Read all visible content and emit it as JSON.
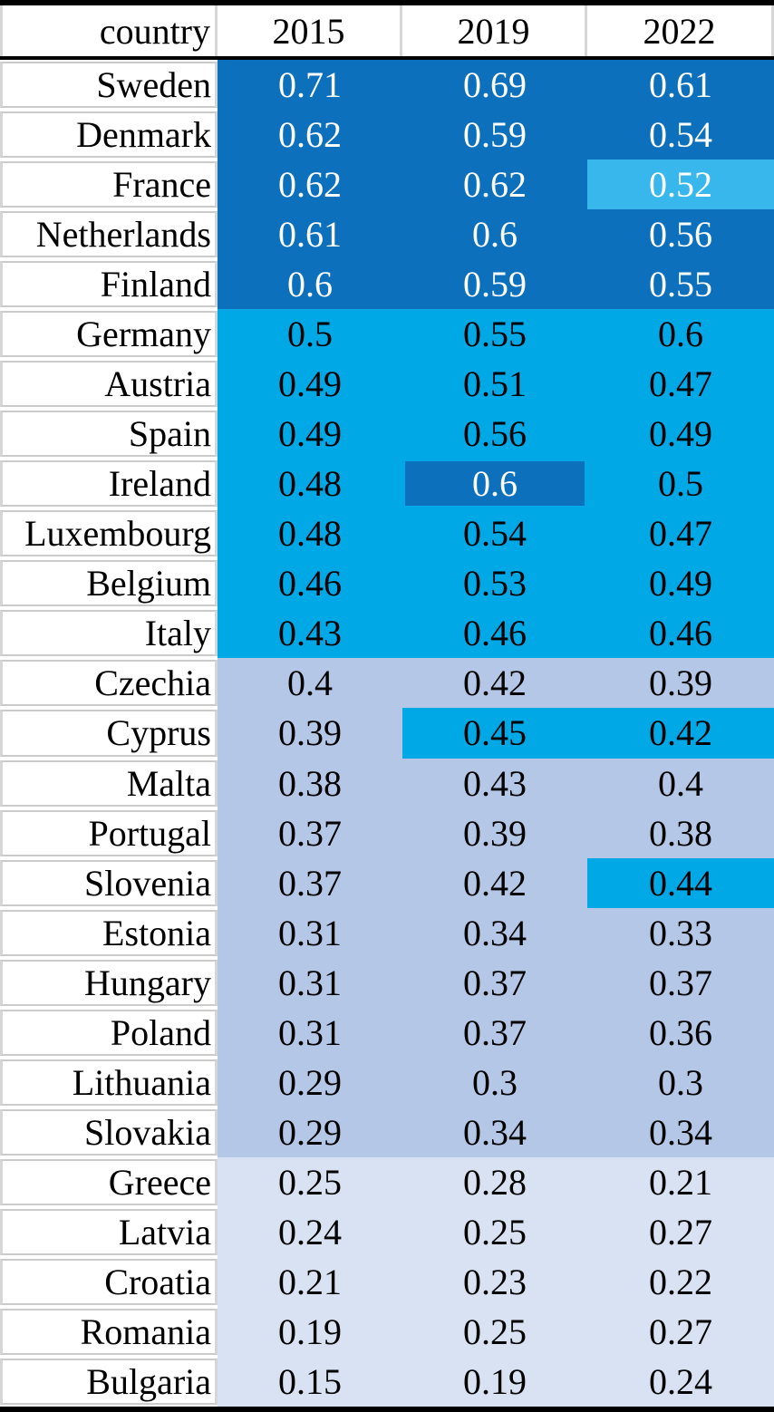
{
  "table": {
    "header": {
      "country_label": "country",
      "years": [
        "2015",
        "2019",
        "2022"
      ]
    },
    "colors": {
      "dark_blue": "#0C70BC",
      "cyan": "#00A8E6",
      "light_cyan": "#38B7EC",
      "lavender": "#B4C7E7",
      "light_lavender": "#D9E2F3",
      "separator_gray": "#CBCBCB",
      "white": "#FFFFFF",
      "black": "#000000"
    },
    "rows": [
      {
        "country": "Sweden",
        "values": [
          "0.71",
          "0.69",
          "0.61"
        ],
        "bg": [
          "dark_blue",
          "dark_blue",
          "dark_blue"
        ],
        "fg": [
          "white",
          "white",
          "white"
        ],
        "inset": [
          false,
          false,
          false
        ]
      },
      {
        "country": "Denmark",
        "values": [
          "0.62",
          "0.59",
          "0.54"
        ],
        "bg": [
          "dark_blue",
          "dark_blue",
          "dark_blue"
        ],
        "fg": [
          "white",
          "white",
          "white"
        ],
        "inset": [
          false,
          false,
          false
        ]
      },
      {
        "country": "France",
        "values": [
          "0.62",
          "0.62",
          "0.52"
        ],
        "bg": [
          "dark_blue",
          "dark_blue",
          "light_cyan"
        ],
        "fg": [
          "white",
          "white",
          "white"
        ],
        "inset": [
          false,
          false,
          false
        ]
      },
      {
        "country": "Netherlands",
        "values": [
          "0.61",
          "0.6",
          "0.56"
        ],
        "bg": [
          "dark_blue",
          "dark_blue",
          "dark_blue"
        ],
        "fg": [
          "white",
          "white",
          "white"
        ],
        "inset": [
          false,
          false,
          false
        ]
      },
      {
        "country": "Finland",
        "values": [
          "0.6",
          "0.59",
          "0.55"
        ],
        "bg": [
          "dark_blue",
          "dark_blue",
          "dark_blue"
        ],
        "fg": [
          "white",
          "white",
          "white"
        ],
        "inset": [
          false,
          false,
          false
        ]
      },
      {
        "country": "Germany",
        "values": [
          "0.5",
          "0.55",
          "0.6"
        ],
        "bg": [
          "cyan",
          "cyan",
          "cyan"
        ],
        "fg": [
          "black",
          "black",
          "black"
        ],
        "inset": [
          false,
          false,
          false
        ]
      },
      {
        "country": "Austria",
        "values": [
          "0.49",
          "0.51",
          "0.47"
        ],
        "bg": [
          "cyan",
          "cyan",
          "cyan"
        ],
        "fg": [
          "black",
          "black",
          "black"
        ],
        "inset": [
          false,
          false,
          false
        ]
      },
      {
        "country": "Spain",
        "values": [
          "0.49",
          "0.56",
          "0.49"
        ],
        "bg": [
          "cyan",
          "cyan",
          "cyan"
        ],
        "fg": [
          "black",
          "black",
          "black"
        ],
        "inset": [
          false,
          false,
          false
        ]
      },
      {
        "country": "Ireland",
        "values": [
          "0.48",
          "0.6",
          "0.5"
        ],
        "bg": [
          "cyan",
          "dark_blue",
          "cyan"
        ],
        "fg": [
          "black",
          "white",
          "black"
        ],
        "inset": [
          false,
          true,
          false
        ]
      },
      {
        "country": "Luxembourg",
        "values": [
          "0.48",
          "0.54",
          "0.47"
        ],
        "bg": [
          "cyan",
          "cyan",
          "cyan"
        ],
        "fg": [
          "black",
          "black",
          "black"
        ],
        "inset": [
          false,
          false,
          false
        ]
      },
      {
        "country": "Belgium",
        "values": [
          "0.46",
          "0.53",
          "0.49"
        ],
        "bg": [
          "cyan",
          "cyan",
          "cyan"
        ],
        "fg": [
          "black",
          "black",
          "black"
        ],
        "inset": [
          false,
          false,
          false
        ]
      },
      {
        "country": "Italy",
        "values": [
          "0.43",
          "0.46",
          "0.46"
        ],
        "bg": [
          "cyan",
          "cyan",
          "cyan"
        ],
        "fg": [
          "black",
          "black",
          "black"
        ],
        "inset": [
          false,
          false,
          false
        ]
      },
      {
        "country": "Czechia",
        "values": [
          "0.4",
          "0.42",
          "0.39"
        ],
        "bg": [
          "lavender",
          "lavender",
          "lavender"
        ],
        "fg": [
          "black",
          "black",
          "black"
        ],
        "inset": [
          false,
          false,
          false
        ]
      },
      {
        "country": "Cyprus",
        "values": [
          "0.39",
          "0.45",
          "0.42"
        ],
        "bg": [
          "lavender",
          "cyan",
          "cyan"
        ],
        "fg": [
          "black",
          "black",
          "black"
        ],
        "inset": [
          false,
          false,
          false
        ]
      },
      {
        "country": "Malta",
        "values": [
          "0.38",
          "0.43",
          "0.4"
        ],
        "bg": [
          "lavender",
          "lavender",
          "lavender"
        ],
        "fg": [
          "black",
          "black",
          "black"
        ],
        "inset": [
          false,
          false,
          false
        ]
      },
      {
        "country": "Portugal",
        "values": [
          "0.37",
          "0.39",
          "0.38"
        ],
        "bg": [
          "lavender",
          "lavender",
          "lavender"
        ],
        "fg": [
          "black",
          "black",
          "black"
        ],
        "inset": [
          false,
          false,
          false
        ]
      },
      {
        "country": "Slovenia",
        "values": [
          "0.37",
          "0.42",
          "0.44"
        ],
        "bg": [
          "lavender",
          "lavender",
          "cyan"
        ],
        "fg": [
          "black",
          "black",
          "black"
        ],
        "inset": [
          false,
          false,
          false
        ]
      },
      {
        "country": "Estonia",
        "values": [
          "0.31",
          "0.34",
          "0.33"
        ],
        "bg": [
          "lavender",
          "lavender",
          "lavender"
        ],
        "fg": [
          "black",
          "black",
          "black"
        ],
        "inset": [
          false,
          false,
          false
        ]
      },
      {
        "country": "Hungary",
        "values": [
          "0.31",
          "0.37",
          "0.37"
        ],
        "bg": [
          "lavender",
          "lavender",
          "lavender"
        ],
        "fg": [
          "black",
          "black",
          "black"
        ],
        "inset": [
          false,
          false,
          false
        ]
      },
      {
        "country": "Poland",
        "values": [
          "0.31",
          "0.37",
          "0.36"
        ],
        "bg": [
          "lavender",
          "lavender",
          "lavender"
        ],
        "fg": [
          "black",
          "black",
          "black"
        ],
        "inset": [
          false,
          false,
          false
        ]
      },
      {
        "country": "Lithuania",
        "values": [
          "0.29",
          "0.3",
          "0.3"
        ],
        "bg": [
          "lavender",
          "lavender",
          "lavender"
        ],
        "fg": [
          "black",
          "black",
          "black"
        ],
        "inset": [
          false,
          false,
          false
        ]
      },
      {
        "country": "Slovakia",
        "values": [
          "0.29",
          "0.34",
          "0.34"
        ],
        "bg": [
          "lavender",
          "lavender",
          "lavender"
        ],
        "fg": [
          "black",
          "black",
          "black"
        ],
        "inset": [
          false,
          false,
          false
        ]
      },
      {
        "country": "Greece",
        "values": [
          "0.25",
          "0.28",
          "0.21"
        ],
        "bg": [
          "light_lavender",
          "light_lavender",
          "light_lavender"
        ],
        "fg": [
          "black",
          "black",
          "black"
        ],
        "inset": [
          false,
          false,
          false
        ]
      },
      {
        "country": "Latvia",
        "values": [
          "0.24",
          "0.25",
          "0.27"
        ],
        "bg": [
          "light_lavender",
          "light_lavender",
          "light_lavender"
        ],
        "fg": [
          "black",
          "black",
          "black"
        ],
        "inset": [
          false,
          false,
          false
        ]
      },
      {
        "country": "Croatia",
        "values": [
          "0.21",
          "0.23",
          "0.22"
        ],
        "bg": [
          "light_lavender",
          "light_lavender",
          "light_lavender"
        ],
        "fg": [
          "black",
          "black",
          "black"
        ],
        "inset": [
          false,
          false,
          false
        ]
      },
      {
        "country": "Romania",
        "values": [
          "0.19",
          "0.25",
          "0.27"
        ],
        "bg": [
          "light_lavender",
          "light_lavender",
          "light_lavender"
        ],
        "fg": [
          "black",
          "black",
          "black"
        ],
        "inset": [
          false,
          false,
          false
        ]
      },
      {
        "country": "Bulgaria",
        "values": [
          "0.15",
          "0.19",
          "0.24"
        ],
        "bg": [
          "light_lavender",
          "light_lavender",
          "light_lavender"
        ],
        "fg": [
          "black",
          "black",
          "black"
        ],
        "inset": [
          false,
          false,
          false
        ]
      }
    ]
  },
  "chart_data": {
    "type": "heatmap",
    "title": "",
    "columns": [
      "2015",
      "2019",
      "2022"
    ],
    "row_label": "country",
    "rows": [
      [
        "Sweden",
        0.71,
        0.69,
        0.61
      ],
      [
        "Denmark",
        0.62,
        0.59,
        0.54
      ],
      [
        "France",
        0.62,
        0.62,
        0.52
      ],
      [
        "Netherlands",
        0.61,
        0.6,
        0.56
      ],
      [
        "Finland",
        0.6,
        0.59,
        0.55
      ],
      [
        "Germany",
        0.5,
        0.55,
        0.6
      ],
      [
        "Austria",
        0.49,
        0.51,
        0.47
      ],
      [
        "Spain",
        0.49,
        0.56,
        0.49
      ],
      [
        "Ireland",
        0.48,
        0.6,
        0.5
      ],
      [
        "Luxembourg",
        0.48,
        0.54,
        0.47
      ],
      [
        "Belgium",
        0.46,
        0.53,
        0.49
      ],
      [
        "Italy",
        0.43,
        0.46,
        0.46
      ],
      [
        "Czechia",
        0.4,
        0.42,
        0.39
      ],
      [
        "Cyprus",
        0.39,
        0.45,
        0.42
      ],
      [
        "Malta",
        0.38,
        0.43,
        0.4
      ],
      [
        "Portugal",
        0.37,
        0.39,
        0.38
      ],
      [
        "Slovenia",
        0.37,
        0.42,
        0.44
      ],
      [
        "Estonia",
        0.31,
        0.34,
        0.33
      ],
      [
        "Hungary",
        0.31,
        0.37,
        0.37
      ],
      [
        "Poland",
        0.31,
        0.37,
        0.36
      ],
      [
        "Lithuania",
        0.29,
        0.3,
        0.3
      ],
      [
        "Slovakia",
        0.29,
        0.34,
        0.34
      ],
      [
        "Greece",
        0.25,
        0.28,
        0.21
      ],
      [
        "Latvia",
        0.24,
        0.25,
        0.27
      ],
      [
        "Croatia",
        0.21,
        0.23,
        0.22
      ],
      [
        "Romania",
        0.19,
        0.25,
        0.27
      ],
      [
        "Bulgaria",
        0.15,
        0.19,
        0.24
      ]
    ],
    "legend_position": "none",
    "grid": false
  }
}
